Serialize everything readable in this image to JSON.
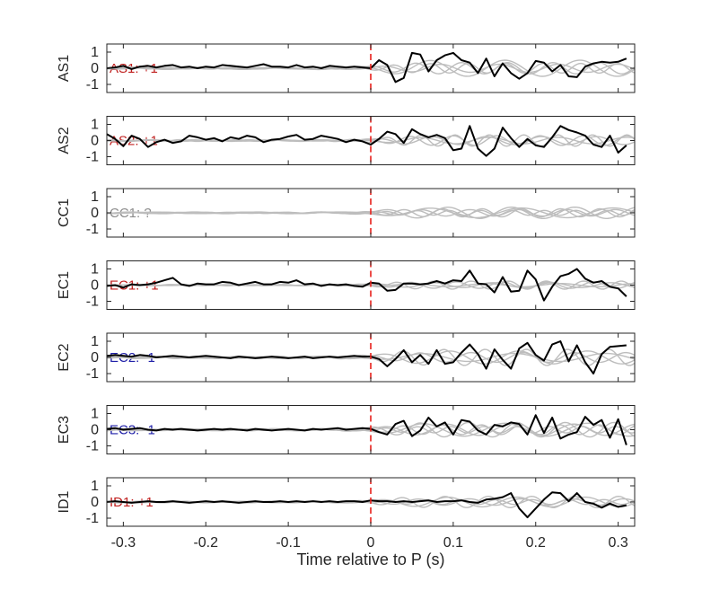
{
  "chart_data": {
    "type": "line",
    "xlabel": "Time relative to P (s)",
    "xlim": [
      -0.32,
      0.32
    ],
    "xticks": [
      -0.3,
      -0.2,
      -0.1,
      0,
      0.1,
      0.2,
      0.3
    ],
    "xtick_labels": [
      "-0.3",
      "-0.2",
      "-0.1",
      "0",
      "0.1",
      "0.2",
      "0.3"
    ],
    "ylim": [
      -1.5,
      1.5
    ],
    "yticks": [
      -1,
      0,
      1
    ],
    "ytick_labels": [
      "-1",
      "0",
      "1"
    ],
    "p_arrival_x": 0,
    "p_arrival_color": "#e8201c",
    "main_trace_color": "#000000",
    "background_trace_color": "#bdbdbd",
    "polarity_colors": {
      "+1": "#c0201f",
      "-1": "#1f1fa8",
      "?": "#8c8c8c"
    },
    "panels": [
      {
        "station": "AS1",
        "label": "AS1: +1",
        "polarity": "+1",
        "x": [
          -0.32,
          -0.31,
          -0.3,
          -0.29,
          -0.28,
          -0.27,
          -0.26,
          -0.25,
          -0.24,
          -0.23,
          -0.22,
          -0.21,
          -0.2,
          -0.19,
          -0.18,
          -0.17,
          -0.16,
          -0.15,
          -0.14,
          -0.13,
          -0.12,
          -0.11,
          -0.1,
          -0.09,
          -0.08,
          -0.07,
          -0.06,
          -0.05,
          -0.04,
          -0.03,
          -0.02,
          -0.01,
          0.0,
          0.01,
          0.02,
          0.03,
          0.04,
          0.05,
          0.06,
          0.07,
          0.08,
          0.09,
          0.1,
          0.11,
          0.12,
          0.13,
          0.14,
          0.15,
          0.16,
          0.17,
          0.18,
          0.19,
          0.2,
          0.21,
          0.22,
          0.23,
          0.24,
          0.25,
          0.26,
          0.27,
          0.28,
          0.29,
          0.3,
          0.31
        ],
        "values": [
          0.0,
          0.05,
          0.15,
          -0.05,
          0.1,
          0.15,
          0.05,
          0.15,
          0.2,
          0.05,
          0.1,
          0.0,
          0.1,
          0.05,
          0.2,
          0.15,
          0.1,
          0.05,
          0.15,
          0.25,
          0.1,
          0.1,
          0.05,
          0.2,
          0.05,
          0.1,
          0.0,
          0.15,
          0.1,
          0.05,
          0.1,
          0.05,
          0.0,
          0.5,
          0.2,
          -0.85,
          -0.6,
          0.95,
          0.85,
          -0.2,
          0.5,
          0.8,
          0.95,
          0.5,
          0.35,
          -0.3,
          0.6,
          -0.5,
          0.3,
          -0.3,
          -0.65,
          -0.3,
          0.45,
          0.35,
          -0.2,
          0.2,
          -0.5,
          -0.55,
          0.1,
          0.3,
          0.4,
          0.35,
          0.4,
          0.6
        ],
        "background": [
          {
            "amp": 0.25,
            "freq": 14,
            "phase": 0.4
          },
          {
            "amp": 0.35,
            "freq": 18,
            "phase": 1.7
          },
          {
            "amp": 0.5,
            "freq": 11,
            "phase": 2.9
          },
          {
            "amp": 0.3,
            "freq": 22,
            "phase": 4.1
          }
        ]
      },
      {
        "station": "AS2",
        "label": "AS2: +1",
        "polarity": "+1",
        "x": [
          -0.32,
          -0.31,
          -0.3,
          -0.29,
          -0.28,
          -0.27,
          -0.26,
          -0.25,
          -0.24,
          -0.23,
          -0.22,
          -0.21,
          -0.2,
          -0.19,
          -0.18,
          -0.17,
          -0.16,
          -0.15,
          -0.14,
          -0.13,
          -0.12,
          -0.11,
          -0.1,
          -0.09,
          -0.08,
          -0.07,
          -0.06,
          -0.05,
          -0.04,
          -0.03,
          -0.02,
          -0.01,
          0.0,
          0.01,
          0.02,
          0.03,
          0.04,
          0.05,
          0.06,
          0.07,
          0.08,
          0.09,
          0.1,
          0.11,
          0.12,
          0.13,
          0.14,
          0.15,
          0.16,
          0.17,
          0.18,
          0.19,
          0.2,
          0.21,
          0.22,
          0.23,
          0.24,
          0.25,
          0.26,
          0.27,
          0.28,
          0.29,
          0.3,
          0.31
        ],
        "values": [
          0.4,
          0.1,
          -0.35,
          0.3,
          0.1,
          -0.4,
          -0.1,
          0.05,
          -0.15,
          -0.05,
          0.3,
          0.2,
          0.05,
          0.15,
          -0.05,
          0.2,
          0.1,
          0.3,
          0.2,
          -0.1,
          0.05,
          0.1,
          0.25,
          0.35,
          0.05,
          0.1,
          0.3,
          0.2,
          0.1,
          -0.1,
          0.05,
          -0.05,
          -0.25,
          0.1,
          0.55,
          0.4,
          -0.15,
          0.7,
          0.4,
          0.2,
          0.35,
          0.15,
          -0.6,
          -0.5,
          0.9,
          -0.5,
          -0.95,
          -0.5,
          0.8,
          0.15,
          -0.4,
          0.1,
          -0.3,
          -0.4,
          0.2,
          0.9,
          0.65,
          0.5,
          0.3,
          -0.25,
          -0.4,
          0.3,
          -0.75,
          -0.3
        ],
        "background": [
          {
            "amp": 0.25,
            "freq": 15,
            "phase": 0.9
          },
          {
            "amp": 0.3,
            "freq": 19,
            "phase": 2.2
          },
          {
            "amp": 0.2,
            "freq": 12,
            "phase": 3.3
          },
          {
            "amp": 0.35,
            "freq": 24,
            "phase": 5.0
          }
        ]
      },
      {
        "station": "CC1",
        "label": "CC1: ?",
        "polarity": "?",
        "x": [],
        "values": [],
        "background": [
          {
            "amp": 0.35,
            "freq": 13,
            "phase": 0.2
          },
          {
            "amp": 0.2,
            "freq": 17,
            "phase": 1.3
          },
          {
            "amp": 0.25,
            "freq": 21,
            "phase": 2.6
          },
          {
            "amp": 0.3,
            "freq": 9,
            "phase": 3.8
          },
          {
            "amp": 0.15,
            "freq": 26,
            "phase": 4.9
          }
        ]
      },
      {
        "station": "EC1",
        "label": "EC1: +1",
        "polarity": "+1",
        "x": [
          -0.32,
          -0.31,
          -0.3,
          -0.29,
          -0.28,
          -0.27,
          -0.26,
          -0.25,
          -0.24,
          -0.23,
          -0.22,
          -0.21,
          -0.2,
          -0.19,
          -0.18,
          -0.17,
          -0.16,
          -0.15,
          -0.14,
          -0.13,
          -0.12,
          -0.11,
          -0.1,
          -0.09,
          -0.08,
          -0.07,
          -0.06,
          -0.05,
          -0.04,
          -0.03,
          -0.02,
          -0.01,
          0.0,
          0.01,
          0.02,
          0.03,
          0.04,
          0.05,
          0.06,
          0.07,
          0.08,
          0.09,
          0.1,
          0.11,
          0.12,
          0.13,
          0.14,
          0.15,
          0.16,
          0.17,
          0.18,
          0.19,
          0.2,
          0.21,
          0.22,
          0.23,
          0.24,
          0.25,
          0.26,
          0.27,
          0.28,
          0.29,
          0.3,
          0.31
        ],
        "values": [
          -0.05,
          0.0,
          -0.15,
          0.05,
          0.0,
          0.05,
          0.15,
          0.3,
          0.45,
          0.05,
          -0.05,
          0.1,
          0.05,
          0.05,
          0.2,
          0.15,
          0.0,
          0.1,
          0.2,
          0.05,
          0.05,
          0.2,
          0.15,
          0.3,
          0.05,
          0.1,
          -0.05,
          0.05,
          0.0,
          0.05,
          -0.05,
          -0.1,
          0.15,
          0.1,
          -0.35,
          -0.3,
          0.1,
          0.1,
          0.05,
          0.1,
          0.25,
          0.1,
          0.3,
          0.25,
          0.9,
          0.1,
          0.05,
          -0.45,
          0.5,
          -0.4,
          -0.35,
          0.9,
          0.35,
          -0.95,
          -0.1,
          0.55,
          0.7,
          1.0,
          0.4,
          0.15,
          0.25,
          -0.1,
          -0.2,
          -0.7
        ],
        "background": [
          {
            "amp": 0.15,
            "freq": 14,
            "phase": 1.1
          },
          {
            "amp": 0.2,
            "freq": 18,
            "phase": 2.4
          },
          {
            "amp": 0.25,
            "freq": 22,
            "phase": 3.6
          },
          {
            "amp": 0.1,
            "freq": 11,
            "phase": 4.5
          }
        ]
      },
      {
        "station": "EC2",
        "label": "EC2: -1",
        "polarity": "-1",
        "x": [
          -0.32,
          -0.31,
          -0.3,
          -0.29,
          -0.28,
          -0.27,
          -0.26,
          -0.25,
          -0.24,
          -0.23,
          -0.22,
          -0.21,
          -0.2,
          -0.19,
          -0.18,
          -0.17,
          -0.16,
          -0.15,
          -0.14,
          -0.13,
          -0.12,
          -0.11,
          -0.1,
          -0.09,
          -0.08,
          -0.07,
          -0.06,
          -0.05,
          -0.04,
          -0.03,
          -0.02,
          -0.01,
          0.0,
          0.01,
          0.02,
          0.03,
          0.04,
          0.05,
          0.06,
          0.07,
          0.08,
          0.09,
          0.1,
          0.11,
          0.12,
          0.13,
          0.14,
          0.15,
          0.16,
          0.17,
          0.18,
          0.19,
          0.2,
          0.21,
          0.22,
          0.23,
          0.24,
          0.25,
          0.26,
          0.27,
          0.28,
          0.29,
          0.3,
          0.31
        ],
        "values": [
          0.1,
          0.15,
          0.1,
          0.05,
          0.15,
          0.1,
          0.0,
          0.05,
          0.1,
          0.05,
          0.0,
          0.05,
          0.1,
          0.05,
          0.0,
          -0.05,
          0.05,
          0.0,
          -0.05,
          0.0,
          0.05,
          0.0,
          -0.05,
          0.0,
          0.05,
          -0.05,
          0.0,
          0.05,
          0.0,
          0.05,
          0.1,
          0.05,
          0.05,
          -0.1,
          -0.55,
          -0.1,
          0.45,
          -0.3,
          0.15,
          -0.4,
          0.45,
          -0.4,
          -0.3,
          0.3,
          0.8,
          0.2,
          -0.7,
          0.5,
          -0.15,
          -0.7,
          0.55,
          0.9,
          0.15,
          -0.2,
          0.8,
          1.0,
          -0.25,
          0.75,
          -0.3,
          -1.0,
          0.2,
          0.65,
          0.7,
          0.75
        ],
        "background": [
          {
            "amp": 0.4,
            "freq": 12,
            "phase": 0.6
          },
          {
            "amp": 0.3,
            "freq": 16,
            "phase": 1.9
          },
          {
            "amp": 0.5,
            "freq": 20,
            "phase": 3.0
          },
          {
            "amp": 0.25,
            "freq": 9,
            "phase": 4.3
          }
        ]
      },
      {
        "station": "EC3",
        "label": "EC3: -1",
        "polarity": "-1",
        "x": [
          -0.32,
          -0.31,
          -0.3,
          -0.29,
          -0.28,
          -0.27,
          -0.26,
          -0.25,
          -0.24,
          -0.23,
          -0.22,
          -0.21,
          -0.2,
          -0.19,
          -0.18,
          -0.17,
          -0.16,
          -0.15,
          -0.14,
          -0.13,
          -0.12,
          -0.11,
          -0.1,
          -0.09,
          -0.08,
          -0.07,
          -0.06,
          -0.05,
          -0.04,
          -0.03,
          -0.02,
          -0.01,
          0.0,
          0.01,
          0.02,
          0.03,
          0.04,
          0.05,
          0.06,
          0.07,
          0.08,
          0.09,
          0.1,
          0.11,
          0.12,
          0.13,
          0.14,
          0.15,
          0.16,
          0.17,
          0.18,
          0.19,
          0.2,
          0.21,
          0.22,
          0.23,
          0.24,
          0.25,
          0.26,
          0.27,
          0.28,
          0.29,
          0.3,
          0.31
        ],
        "values": [
          0.05,
          0.1,
          0.0,
          0.05,
          0.1,
          0.0,
          -0.05,
          0.05,
          0.0,
          0.05,
          0.0,
          -0.05,
          0.0,
          0.05,
          0.0,
          0.05,
          0.0,
          -0.05,
          0.05,
          0.0,
          -0.05,
          0.0,
          0.05,
          0.0,
          -0.05,
          0.05,
          0.0,
          0.05,
          0.1,
          0.0,
          0.05,
          0.1,
          0.05,
          -0.15,
          -0.3,
          0.35,
          0.55,
          -0.4,
          -0.05,
          0.75,
          0.2,
          0.45,
          -0.3,
          0.6,
          0.5,
          -0.05,
          -0.3,
          0.3,
          0.2,
          0.45,
          0.35,
          -0.3,
          0.9,
          -0.2,
          0.75,
          -0.55,
          -0.3,
          -0.15,
          0.8,
          0.3,
          0.6,
          -0.5,
          0.65,
          -0.95
        ],
        "background": [
          {
            "amp": 0.35,
            "freq": 13,
            "phase": 0.3
          },
          {
            "amp": 0.45,
            "freq": 17,
            "phase": 1.5
          },
          {
            "amp": 0.3,
            "freq": 21,
            "phase": 2.7
          },
          {
            "amp": 0.4,
            "freq": 10,
            "phase": 3.9
          },
          {
            "amp": 0.2,
            "freq": 25,
            "phase": 5.2
          }
        ]
      },
      {
        "station": "ID1",
        "label": "ID1: +1",
        "polarity": "+1",
        "x": [
          -0.32,
          -0.31,
          -0.3,
          -0.29,
          -0.28,
          -0.27,
          -0.26,
          -0.25,
          -0.24,
          -0.23,
          -0.22,
          -0.21,
          -0.2,
          -0.19,
          -0.18,
          -0.17,
          -0.16,
          -0.15,
          -0.14,
          -0.13,
          -0.12,
          -0.11,
          -0.1,
          -0.09,
          -0.08,
          -0.07,
          -0.06,
          -0.05,
          -0.04,
          -0.03,
          -0.02,
          -0.01,
          0.0,
          0.01,
          0.02,
          0.03,
          0.04,
          0.05,
          0.06,
          0.07,
          0.08,
          0.09,
          0.1,
          0.11,
          0.12,
          0.13,
          0.14,
          0.15,
          0.16,
          0.17,
          0.18,
          0.19,
          0.2,
          0.21,
          0.22,
          0.23,
          0.24,
          0.25,
          0.26,
          0.27,
          0.28,
          0.29,
          0.3,
          0.31
        ],
        "values": [
          0.0,
          0.05,
          0.0,
          -0.05,
          0.0,
          0.05,
          0.0,
          0.0,
          0.05,
          0.0,
          -0.05,
          0.0,
          0.05,
          0.0,
          0.05,
          0.0,
          -0.05,
          0.0,
          0.05,
          0.0,
          0.0,
          0.05,
          0.0,
          0.05,
          0.0,
          0.05,
          0.0,
          0.05,
          0.0,
          0.05,
          0.05,
          0.0,
          0.1,
          0.05,
          0.05,
          0.0,
          0.05,
          0.0,
          0.05,
          0.1,
          0.0,
          0.05,
          0.05,
          0.1,
          0.0,
          -0.05,
          0.15,
          0.2,
          0.3,
          0.55,
          -0.4,
          -0.95,
          -0.4,
          0.15,
          0.6,
          0.55,
          0.05,
          0.55,
          0.0,
          -0.1,
          -0.35,
          -0.1,
          -0.3,
          -0.2
        ],
        "background": [
          {
            "amp": 0.3,
            "freq": 12,
            "phase": 0.8
          },
          {
            "amp": 0.2,
            "freq": 16,
            "phase": 2.1
          },
          {
            "amp": 0.35,
            "freq": 19,
            "phase": 3.4
          },
          {
            "amp": 0.15,
            "freq": 23,
            "phase": 4.7
          }
        ]
      }
    ]
  }
}
